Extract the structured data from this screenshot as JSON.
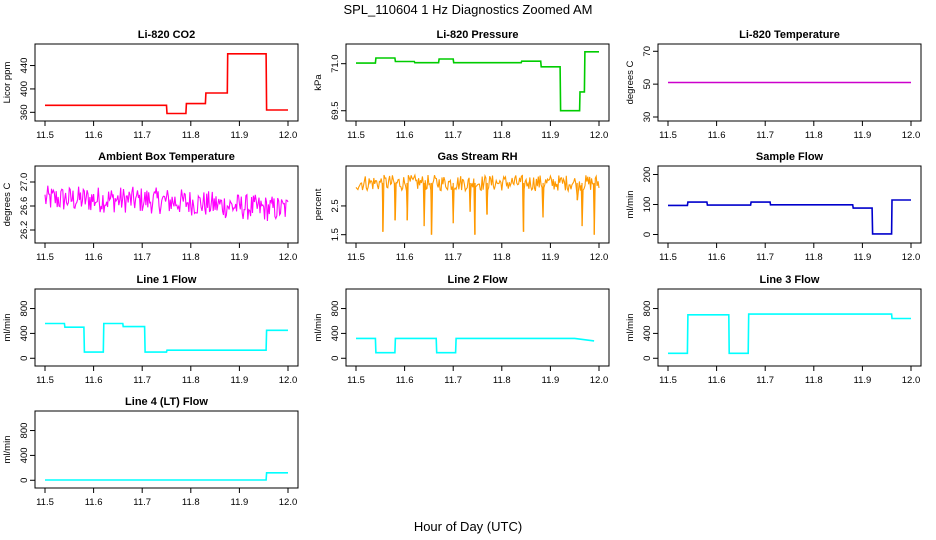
{
  "figure": {
    "title": "SPL_110604  1 Hz Diagnostics Zoomed AM",
    "xlabel": "Hour of Day (UTC)"
  },
  "chart_data": [
    {
      "type": "line",
      "title": "Li-820 CO2",
      "ylabel": "Licor ppm",
      "color": "#ff0000",
      "xlim": [
        11.5,
        12.0
      ],
      "ylim": [
        352,
        470
      ],
      "xticks": [
        "11.5",
        "11.6",
        "11.7",
        "11.8",
        "11.9",
        "12.0"
      ],
      "yticks": [
        360,
        400,
        440
      ],
      "x": [
        11.5,
        11.75,
        11.751,
        11.79,
        11.791,
        11.83,
        11.831,
        11.875,
        11.876,
        11.955,
        11.956,
        12.0
      ],
      "y": [
        372,
        372,
        358,
        358,
        375,
        375,
        393,
        393,
        460,
        460,
        364,
        364
      ]
    },
    {
      "type": "line",
      "title": "Li-820 Pressure",
      "ylabel": "kPa",
      "color": "#00cc00",
      "xlim": [
        11.5,
        12.0
      ],
      "ylim": [
        69.3,
        71.5
      ],
      "xticks": [
        "11.5",
        "11.6",
        "11.7",
        "11.8",
        "11.9",
        "12.0"
      ],
      "yticks": [
        "69.5",
        "71.0"
      ],
      "x": [
        11.5,
        11.54,
        11.541,
        11.58,
        11.581,
        11.62,
        11.621,
        11.67,
        11.671,
        11.7,
        11.701,
        11.84,
        11.841,
        11.88,
        11.881,
        11.92,
        11.921,
        11.96,
        11.961,
        11.97,
        11.971,
        12.0
      ],
      "y": [
        71.02,
        71.02,
        71.18,
        71.18,
        71.07,
        71.07,
        71.03,
        71.03,
        71.15,
        71.15,
        71.03,
        71.03,
        71.08,
        71.08,
        70.9,
        70.9,
        69.5,
        69.5,
        70.1,
        70.1,
        71.38,
        71.38
      ]
    },
    {
      "type": "line",
      "title": "Li-820 Temperature",
      "ylabel": "degrees C",
      "color": "#cc00cc",
      "xlim": [
        11.5,
        12.0
      ],
      "ylim": [
        30,
        72
      ],
      "xticks": [
        "11.5",
        "11.6",
        "11.7",
        "11.8",
        "11.9",
        "12.0"
      ],
      "yticks": [
        30,
        50,
        70
      ],
      "x": [
        11.5,
        12.0
      ],
      "y": [
        51,
        51
      ]
    },
    {
      "type": "line",
      "title": "Ambient Box Temperature",
      "ylabel": "degrees C",
      "color": "#ff00ff",
      "xlim": [
        11.5,
        12.0
      ],
      "ylim": [
        26.05,
        27.2
      ],
      "xticks": [
        "11.5",
        "11.6",
        "11.7",
        "11.8",
        "11.9",
        "12.0"
      ],
      "yticks": [
        "26.2",
        "26.6",
        "27.0"
      ],
      "noise": 0.22,
      "x": [
        11.5,
        11.7,
        11.8,
        11.88,
        11.95,
        12.0
      ],
      "y": [
        26.72,
        26.7,
        26.66,
        26.6,
        26.56,
        26.55
      ]
    },
    {
      "type": "line",
      "title": "Gas Stream RH",
      "ylabel": "percent",
      "color": "#ff9900",
      "xlim": [
        11.5,
        12.0
      ],
      "ylim": [
        1.35,
        3.75
      ],
      "xticks": [
        "11.5",
        "11.6",
        "11.7",
        "11.8",
        "11.9",
        "12.0"
      ],
      "yticks": [
        "1.5",
        "2.5"
      ],
      "noise": 0.28,
      "spikes": [
        [
          11.555,
          1.6
        ],
        [
          11.58,
          2.0
        ],
        [
          11.605,
          2.0
        ],
        [
          11.64,
          1.8
        ],
        [
          11.655,
          1.5
        ],
        [
          11.7,
          1.9
        ],
        [
          11.735,
          2.3
        ],
        [
          11.745,
          1.5
        ],
        [
          11.77,
          2.2
        ],
        [
          11.845,
          1.6
        ],
        [
          11.885,
          2.1
        ],
        [
          11.955,
          2.7
        ],
        [
          11.965,
          1.8
        ],
        [
          11.99,
          1.5
        ]
      ],
      "x": [
        11.5,
        12.0
      ],
      "y": [
        3.3,
        3.3
      ]
    },
    {
      "type": "line",
      "title": "Sample Flow",
      "ylabel": "ml/min",
      "color": "#0000cc",
      "xlim": [
        11.5,
        12.0
      ],
      "ylim": [
        -15,
        215
      ],
      "xticks": [
        "11.5",
        "11.6",
        "11.7",
        "11.8",
        "11.9",
        "12.0"
      ],
      "yticks": [
        0,
        100,
        200
      ],
      "x": [
        11.5,
        11.54,
        11.541,
        11.58,
        11.581,
        11.67,
        11.671,
        11.71,
        11.711,
        11.88,
        11.881,
        11.92,
        11.921,
        11.95,
        11.951,
        11.96,
        11.961,
        12.0
      ],
      "y": [
        97,
        97,
        108,
        108,
        98,
        98,
        108,
        108,
        99,
        99,
        88,
        88,
        2,
        2,
        2,
        2,
        115,
        115
      ]
    },
    {
      "type": "line",
      "title": "Line 1 Flow",
      "ylabel": "ml/min",
      "color": "#00ffff",
      "xlim": [
        11.5,
        12.0
      ],
      "ylim": [
        -60,
        1050
      ],
      "xticks": [
        "11.5",
        "11.6",
        "11.7",
        "11.8",
        "11.9",
        "12.0"
      ],
      "yticks": [
        0,
        400,
        800
      ],
      "x": [
        11.5,
        11.54,
        11.541,
        11.58,
        11.581,
        11.62,
        11.621,
        11.66,
        11.661,
        11.705,
        11.706,
        11.75,
        11.751,
        11.955,
        11.956,
        12.0
      ],
      "y": [
        560,
        560,
        500,
        500,
        100,
        100,
        560,
        560,
        510,
        510,
        100,
        100,
        130,
        130,
        450,
        450
      ]
    },
    {
      "type": "line",
      "title": "Line 2 Flow",
      "ylabel": "ml/min",
      "color": "#00ffff",
      "xlim": [
        11.5,
        12.0
      ],
      "ylim": [
        -60,
        1050
      ],
      "xticks": [
        "11.5",
        "11.6",
        "11.7",
        "11.8",
        "11.9",
        "12.0"
      ],
      "yticks": [
        0,
        400,
        800
      ],
      "x": [
        11.5,
        11.54,
        11.541,
        11.58,
        11.581,
        11.665,
        11.666,
        11.705,
        11.706,
        11.95,
        11.99
      ],
      "y": [
        320,
        320,
        90,
        90,
        320,
        320,
        90,
        90,
        320,
        320,
        280
      ]
    },
    {
      "type": "line",
      "title": "Line 3 Flow",
      "ylabel": "ml/min",
      "color": "#00ffff",
      "xlim": [
        11.5,
        12.0
      ],
      "ylim": [
        -60,
        1050
      ],
      "xticks": [
        "11.5",
        "11.6",
        "11.7",
        "11.8",
        "11.9",
        "12.0"
      ],
      "yticks": [
        0,
        400,
        800
      ],
      "x": [
        11.5,
        11.54,
        11.541,
        11.625,
        11.626,
        11.665,
        11.666,
        11.96,
        11.961,
        12.0
      ],
      "y": [
        80,
        80,
        700,
        700,
        80,
        80,
        710,
        710,
        640,
        640
      ]
    },
    {
      "type": "line",
      "title": "Line 4 (LT) Flow",
      "ylabel": "ml/min",
      "color": "#00ffff",
      "xlim": [
        11.5,
        12.0
      ],
      "ylim": [
        -60,
        1050
      ],
      "xticks": [
        "11.5",
        "11.6",
        "11.7",
        "11.8",
        "11.9",
        "12.0"
      ],
      "yticks": [
        0,
        400,
        800
      ],
      "x": [
        11.5,
        11.955,
        11.956,
        12.0
      ],
      "y": [
        5,
        5,
        120,
        120
      ]
    }
  ]
}
